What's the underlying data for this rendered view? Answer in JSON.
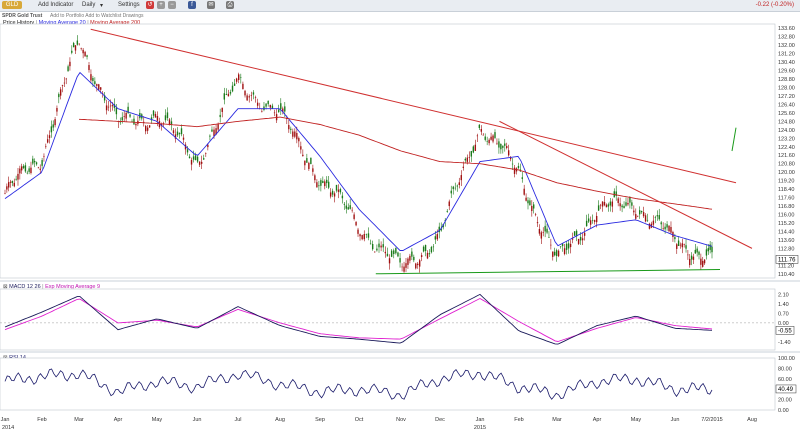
{
  "toolbar": {
    "symbol": "GLD",
    "add_indicator": "Add Indicator",
    "interval": "Daily",
    "settings": "Settings",
    "change": "-0.22 (-0.20%)"
  },
  "subbar": {
    "name": "SPDR Gold Trust",
    "links": "Add to Portfolio  Add to Watchlist  Drawings"
  },
  "price_panel": {
    "legend_price": "Price History",
    "legend_ma20": "Moving Average 20",
    "legend_ma200": "Moving Average 200",
    "y_ticks": [
      "133.60",
      "132.80",
      "132.00",
      "131.20",
      "130.40",
      "129.60",
      "128.80",
      "128.00",
      "127.20",
      "126.40",
      "125.60",
      "124.80",
      "124.00",
      "123.20",
      "122.40",
      "121.60",
      "120.80",
      "120.00",
      "119.20",
      "118.40",
      "117.60",
      "116.80",
      "116.00",
      "115.20",
      "114.40",
      "113.60",
      "112.80",
      "112.00",
      "111.20",
      "110.40"
    ],
    "last_value": "111.76"
  },
  "macd_panel": {
    "legend_macd": "MACD 12 26",
    "legend_ema": "Exp Moving Average 9",
    "y_ticks": [
      "2.10",
      "1.40",
      "0.70",
      "0.00",
      "-1.40"
    ],
    "last_value": "-0.55"
  },
  "rsi_panel": {
    "legend": "RSI 14",
    "y_ticks": [
      "100.00",
      "80.00",
      "60.00",
      "40.00",
      "20.00",
      "0.00"
    ],
    "last_value": "40.49"
  },
  "x_axis": {
    "labels": [
      "Jan",
      "Feb",
      "Mar",
      "Apr",
      "May",
      "Jun",
      "Jul",
      "Aug",
      "Sep",
      "Oct",
      "Nov",
      "Dec",
      "Jan",
      "Feb",
      "Mar",
      "Apr",
      "May",
      "Jun",
      "7/2/2015",
      "Aug"
    ],
    "year_labels": [
      "2014",
      "2015"
    ]
  },
  "colors": {
    "price": "#1a7a1a",
    "down": "#a01010",
    "ma20": "#2a2ae0",
    "ma200": "#c02020",
    "trendline": "#d03030",
    "support": "#1a9a1a",
    "macd": "#1a1a5a",
    "ema": "#e020d0",
    "rsi": "#1a1a6a"
  },
  "chart_data": [
    {
      "type": "line",
      "title": "SPDR Gold Trust",
      "series": [
        {
          "name": "Price History",
          "x": [
            "Jan",
            "Feb",
            "Mar",
            "Apr",
            "May",
            "Jun",
            "Jul",
            "Aug",
            "Sep",
            "Oct",
            "Nov",
            "Dec",
            "Jan",
            "Feb",
            "Mar",
            "Apr",
            "May",
            "Jun",
            "7/2/2015"
          ],
          "values": [
            118.0,
            121.5,
            132.5,
            124.5,
            125.5,
            121.0,
            128.5,
            125.5,
            119.5,
            115.0,
            110.8,
            114.0,
            124.5,
            120.0,
            111.5,
            116.5,
            117.0,
            113.5,
            111.76
          ]
        },
        {
          "name": "Moving Average 20",
          "x": [
            "Jan",
            "Feb",
            "Mar",
            "Apr",
            "May",
            "Jun",
            "Jul",
            "Aug",
            "Sep",
            "Oct",
            "Nov",
            "Dec",
            "Jan",
            "Feb",
            "Mar",
            "Apr",
            "May",
            "Jun",
            "7/2/2015"
          ],
          "values": [
            117.5,
            120.0,
            129.5,
            126.0,
            124.8,
            121.5,
            126.0,
            126.0,
            121.5,
            116.5,
            112.5,
            114.5,
            121.0,
            121.5,
            113.0,
            115.0,
            115.5,
            114.0,
            113.0
          ]
        },
        {
          "name": "Moving Average 200",
          "x": [
            "Mar",
            "Apr",
            "May",
            "Jun",
            "Jul",
            "Aug",
            "Sep",
            "Oct",
            "Nov",
            "Dec",
            "Jan",
            "Feb",
            "Mar",
            "Apr",
            "May",
            "Jun",
            "7/2/2015"
          ],
          "values": [
            125.0,
            124.8,
            124.6,
            124.3,
            124.8,
            125.2,
            124.5,
            123.5,
            122.0,
            121.0,
            120.8,
            120.2,
            119.0,
            118.2,
            117.5,
            117.0,
            116.5
          ]
        }
      ],
      "ylim": [
        110.0,
        134.0
      ]
    },
    {
      "type": "line",
      "title": "MACD 12 26",
      "series": [
        {
          "name": "MACD 12 26",
          "x": [
            "Jan",
            "Feb",
            "Mar",
            "Apr",
            "May",
            "Jun",
            "Jul",
            "Aug",
            "Sep",
            "Oct",
            "Nov",
            "Dec",
            "Jan",
            "Feb",
            "Mar",
            "Apr",
            "May",
            "Jun",
            "7/2/2015"
          ],
          "values": [
            -0.3,
            0.8,
            2.0,
            -0.5,
            0.3,
            -0.4,
            1.2,
            -0.2,
            -1.0,
            -1.2,
            -1.5,
            0.6,
            2.1,
            -0.6,
            -1.6,
            -0.2,
            0.5,
            -0.4,
            -0.55
          ]
        },
        {
          "name": "Exp Moving Average 9",
          "x": [
            "Jan",
            "Feb",
            "Mar",
            "Apr",
            "May",
            "Jun",
            "Jul",
            "Aug",
            "Sep",
            "Oct",
            "Nov",
            "Dec",
            "Jan",
            "Feb",
            "Mar",
            "Apr",
            "May",
            "Jun",
            "7/2/2015"
          ],
          "values": [
            -0.5,
            0.5,
            1.8,
            0.0,
            0.2,
            -0.3,
            1.0,
            0.0,
            -0.8,
            -1.1,
            -1.2,
            0.3,
            1.8,
            0.1,
            -1.4,
            -0.4,
            0.4,
            -0.2,
            -0.45
          ]
        }
      ],
      "ylim": [
        -2.0,
        2.5
      ]
    },
    {
      "type": "line",
      "title": "RSI 14",
      "series": [
        {
          "name": "RSI 14",
          "x": [
            "Jan",
            "Feb",
            "Mar",
            "Apr",
            "May",
            "Jun",
            "Jul",
            "Aug",
            "Sep",
            "Oct",
            "Nov",
            "Dec",
            "Jan",
            "Feb",
            "Mar",
            "Apr",
            "May",
            "Jun",
            "7/2/2015"
          ],
          "values": [
            55,
            65,
            70,
            35,
            55,
            45,
            70,
            50,
            35,
            40,
            30,
            60,
            72,
            45,
            30,
            55,
            60,
            40,
            40.49
          ]
        }
      ],
      "ylim": [
        0,
        100
      ]
    }
  ]
}
